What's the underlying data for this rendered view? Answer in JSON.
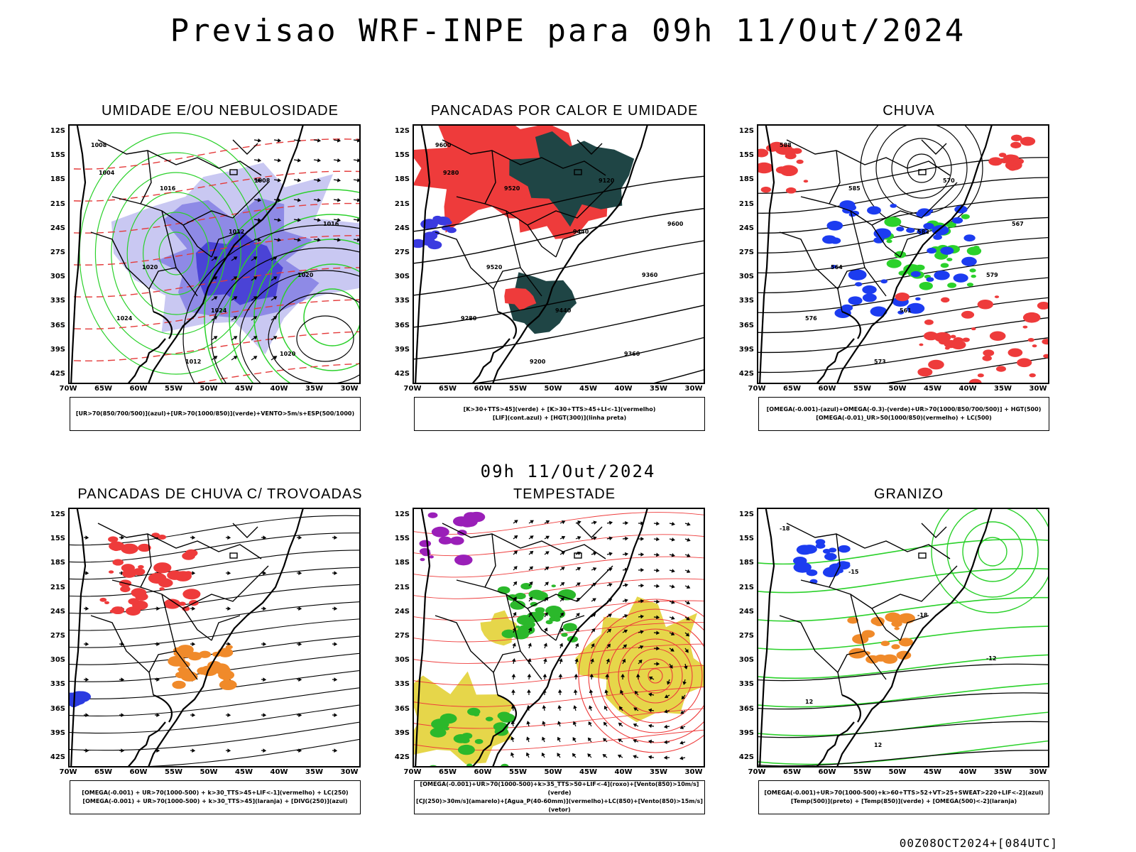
{
  "main_title": "Previsao WRF-INPE  para 09h 11/Out/2024",
  "mid_title": "09h 11/Out/2024",
  "run_stamp": "00Z08OCT2024+[084UTC]",
  "axes": {
    "lat_labels": [
      "12S",
      "15S",
      "18S",
      "21S",
      "24S",
      "27S",
      "30S",
      "33S",
      "36S",
      "39S",
      "42S"
    ],
    "lon_labels": [
      "70W",
      "65W",
      "60W",
      "55W",
      "50W",
      "45W",
      "40W",
      "35W",
      "30W"
    ]
  },
  "panels": [
    {
      "id": "umidade",
      "title": "UMIDADE E/OU NEBULOSIDADE",
      "legend": [
        "[UR>70(850/700/500)](azul)+[UR>70(1000/850)](verde)+VENTO>5m/s+ESP(500/1000)"
      ],
      "contour_labels": [
        "1008",
        "1016",
        "1012",
        "1020",
        "1024",
        "1012",
        "1008",
        "1016",
        "1020",
        "1024",
        "1020",
        "1004"
      ]
    },
    {
      "id": "pancadas-calor",
      "title": "PANCADAS POR CALOR E UMIDADE",
      "legend": [
        "[K>30+TTS>45](verde) + [K>30+TTS>45+LI<-1](vermelho)",
        "[LIF](cont.azul) + [HGT(300)](linha preta)"
      ],
      "contour_labels": [
        "9600",
        "9520",
        "9440",
        "9360",
        "9280",
        "9200",
        "9120",
        "9600",
        "9520",
        "9440",
        "9360",
        "9280"
      ]
    },
    {
      "id": "chuva",
      "title": "CHUVA",
      "legend": [
        "[OMEGA(-0.001)-(azul)+OMEGA(-0.3)-(verde)+UR>70(1000/850/700/500)] + HGT(500)",
        "[OMEGA(-0.01)_UR>50(1000/850)(vermelho) + LC(500)"
      ],
      "contour_labels": [
        "588",
        "585",
        "582",
        "579",
        "576",
        "573",
        "570",
        "567",
        "564",
        "561"
      ]
    },
    {
      "id": "trovoadas",
      "title": "PANCADAS DE CHUVA C/ TROVOADAS",
      "legend": [
        "[OMEGA(-0.001) + UR>70(1000-500) + k>30_TTS>45+LIF<-1](vermelho) + LC(250)",
        "[OMEGA(-0.001) + UR>70(1000-500) + k>30_TTS>45](laranja) + [DIVG(250)](azul)"
      ],
      "contour_labels": []
    },
    {
      "id": "tempestade",
      "title": "TEMPESTADE",
      "legend": [
        "[OMEGA(-0.001)+UR>70(1000-500)+k>35_TTS>50+LIF<-4](roxo)+[Vento(850)>10m/s](verde)",
        "[CJ(250)>30m/s](amarelo)+[Agua_P(40-60mm)](vermelho)+LC(850)+[Vento(850)>15m/s](vetor)"
      ],
      "contour_labels": []
    },
    {
      "id": "granizo",
      "title": "GRANIZO",
      "legend": [
        "[OMEGA(-0.001)+UR>70(1000-500)+k>60+TTS>52+VT>25+SWEAT>220+LIF<-2](azul)",
        "[Temp(500)](preto) + [Temp(850)](verde) + [OMEGA(500)<-2](laranja)"
      ],
      "contour_labels": [
        "-18",
        "-15",
        "-18",
        "-12",
        "12",
        "12"
      ]
    }
  ]
}
